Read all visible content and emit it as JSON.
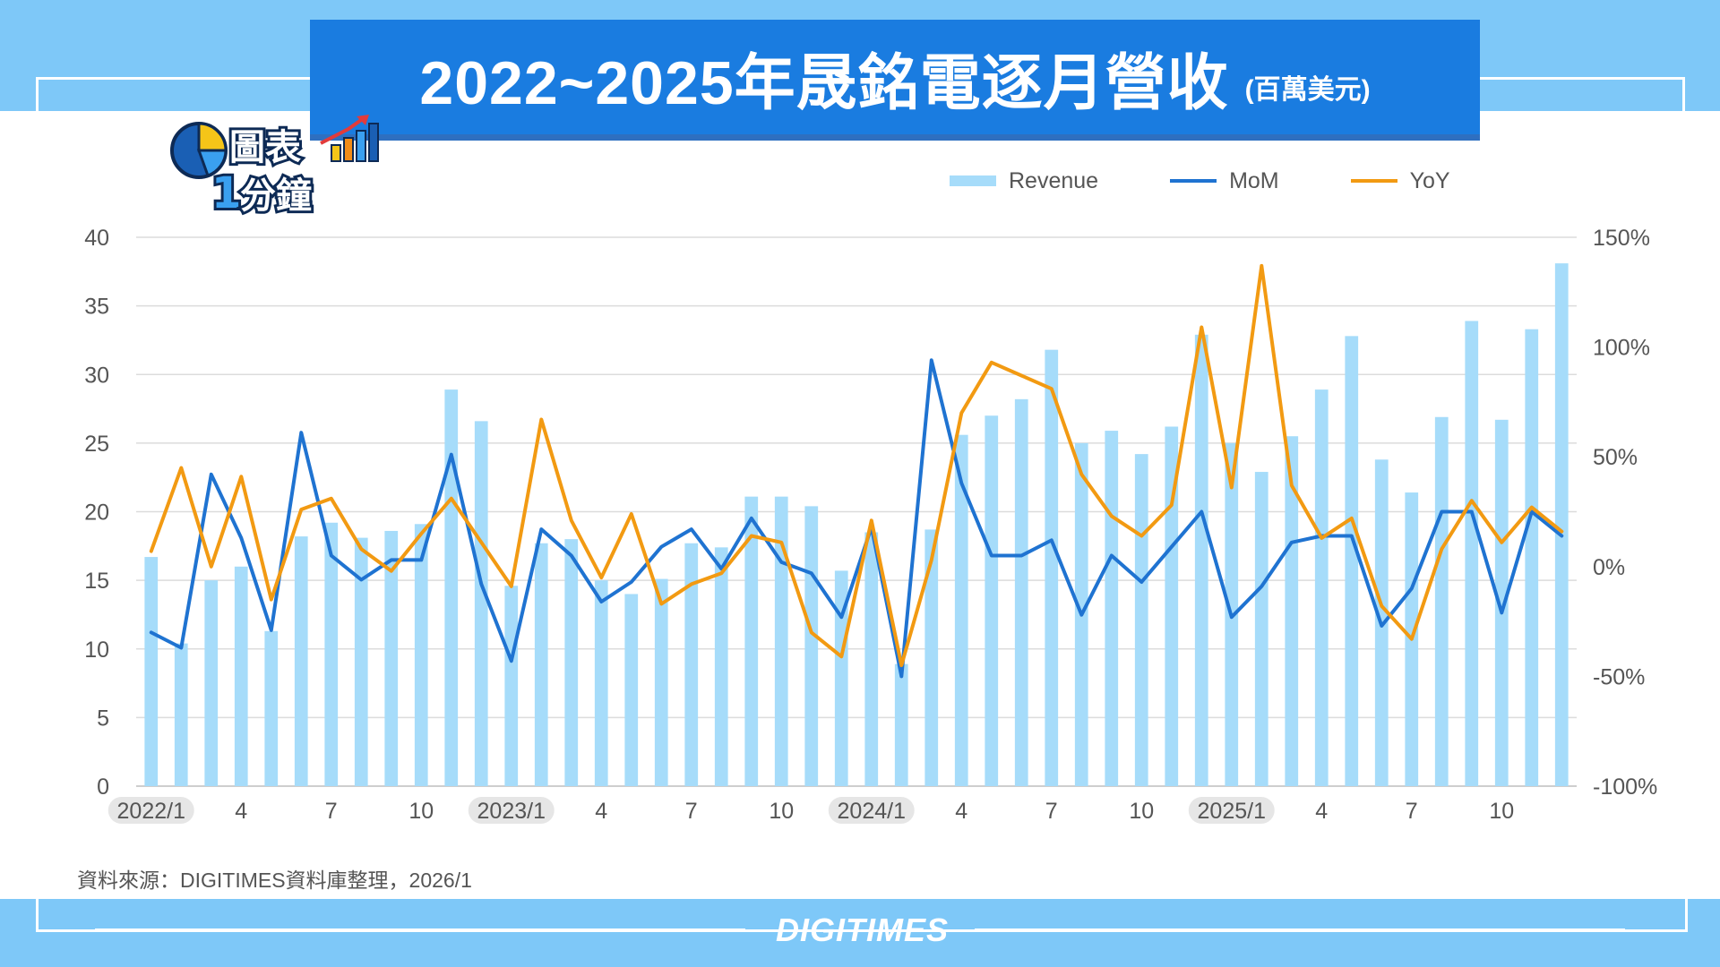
{
  "title": "2022~2025年晟銘電逐月營收",
  "title_unit": "(百萬美元)",
  "badge": {
    "line1": "圖表",
    "line2_num": "1",
    "line2_text": "分鐘"
  },
  "source": "資料來源：DIGITIMES資料庫整理，2026/1",
  "logo": "DIGITIMES",
  "colors": {
    "revenue": "#a6dcfa",
    "mom": "#1f73d1",
    "yoy": "#f29a12",
    "frame": "#7ec8f8",
    "title_bg": "#1a7ce0"
  },
  "chart_data": {
    "type": "bar+line",
    "categories": [
      "2022/1",
      "2022/2",
      "2022/3",
      "2022/4",
      "2022/5",
      "2022/6",
      "2022/7",
      "2022/8",
      "2022/9",
      "2022/10",
      "2022/11",
      "2022/12",
      "2023/1",
      "2023/2",
      "2023/3",
      "2023/4",
      "2023/5",
      "2023/6",
      "2023/7",
      "2023/8",
      "2023/9",
      "2023/10",
      "2023/11",
      "2023/12",
      "2024/1",
      "2024/2",
      "2024/3",
      "2024/4",
      "2024/5",
      "2024/6",
      "2024/7",
      "2024/8",
      "2024/9",
      "2024/10",
      "2024/11",
      "2024/12",
      "2025/1",
      "2025/2",
      "2025/3",
      "2025/4",
      "2025/5",
      "2025/6",
      "2025/7",
      "2025/8",
      "2025/9",
      "2025/10",
      "2025/11",
      "2025/12"
    ],
    "x_tick_labels": [
      {
        "index": 0,
        "label": "2022/1",
        "year": true
      },
      {
        "index": 3,
        "label": "4"
      },
      {
        "index": 6,
        "label": "7"
      },
      {
        "index": 9,
        "label": "10"
      },
      {
        "index": 12,
        "label": "2023/1",
        "year": true
      },
      {
        "index": 15,
        "label": "4"
      },
      {
        "index": 18,
        "label": "7"
      },
      {
        "index": 21,
        "label": "10"
      },
      {
        "index": 24,
        "label": "2024/1",
        "year": true
      },
      {
        "index": 27,
        "label": "4"
      },
      {
        "index": 30,
        "label": "7"
      },
      {
        "index": 33,
        "label": "10"
      },
      {
        "index": 36,
        "label": "2025/1",
        "year": true
      },
      {
        "index": 39,
        "label": "4"
      },
      {
        "index": 42,
        "label": "7"
      },
      {
        "index": 45,
        "label": "10"
      }
    ],
    "series": [
      {
        "name": "Revenue",
        "type": "bar",
        "axis": "left",
        "values": [
          16.7,
          10.4,
          15.0,
          16.0,
          11.3,
          18.2,
          19.2,
          18.1,
          18.6,
          19.1,
          28.9,
          26.6,
          14.6,
          17.7,
          18.0,
          15.0,
          14.0,
          15.1,
          17.7,
          17.4,
          21.1,
          21.1,
          20.4,
          15.7,
          18.5,
          8.9,
          18.7,
          25.6,
          27.0,
          28.2,
          31.8,
          25.0,
          25.9,
          24.2,
          26.2,
          32.9,
          25.0,
          22.9,
          25.5,
          28.9,
          32.8,
          23.8,
          21.4,
          26.9,
          33.9,
          26.7,
          33.3,
          38.1
        ]
      },
      {
        "name": "MoM",
        "type": "line",
        "axis": "right",
        "values": [
          -30,
          -37,
          42,
          13,
          -29,
          61,
          5,
          -6,
          3,
          3,
          51,
          -8,
          -43,
          17,
          5,
          -16,
          -7,
          9,
          17,
          -1,
          22,
          2,
          -3,
          -23,
          18,
          -50,
          94,
          38,
          5,
          5,
          12,
          -22,
          5,
          -7,
          9,
          25,
          -23,
          -9,
          11,
          14,
          14,
          -27,
          -10,
          25,
          25,
          -21,
          25,
          14
        ]
      },
      {
        "name": "YoY",
        "type": "line",
        "axis": "right",
        "values": [
          7,
          45,
          0,
          41,
          -15,
          26,
          31,
          8,
          -2,
          15,
          31,
          11,
          -9,
          67,
          21,
          -5,
          24,
          -17,
          -8,
          -3,
          14,
          11,
          -30,
          -41,
          21,
          -45,
          3,
          70,
          93,
          87,
          81,
          42,
          23,
          14,
          28,
          109,
          36,
          137,
          37,
          13,
          22,
          -18,
          -33,
          8,
          30,
          11,
          27,
          16
        ]
      }
    ],
    "y_left": {
      "min": 0,
      "max": 40,
      "ticks": [
        0,
        5,
        10,
        15,
        20,
        25,
        30,
        35,
        40
      ],
      "tick_labels": [
        "0",
        "5",
        "10",
        "15",
        "20",
        "25",
        "30",
        "35",
        "40"
      ]
    },
    "y_right": {
      "min": -100,
      "max": 150,
      "ticks": [
        -100,
        -50,
        0,
        50,
        100,
        150
      ],
      "tick_labels": [
        "-100%",
        "-50%",
        "0%",
        "50%",
        "100%",
        "150%"
      ]
    },
    "grid": true,
    "legend_position": "top-right"
  }
}
